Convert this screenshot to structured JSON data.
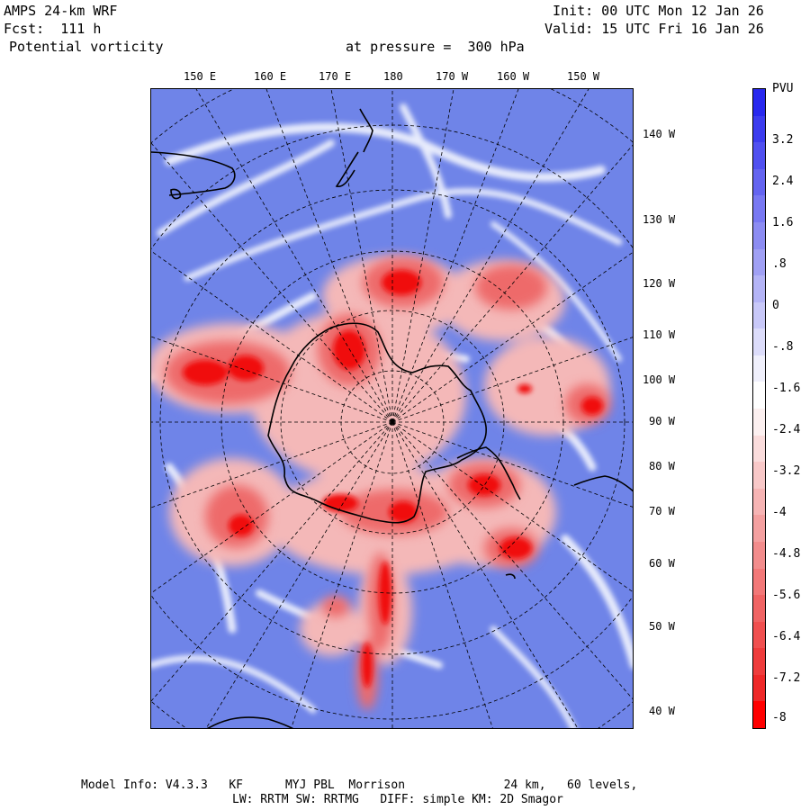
{
  "header": {
    "model": "AMPS 24-km WRF",
    "forecast": "Fcst:  111 h",
    "variable": "Potential vorticity",
    "level": "at pressure =  300 hPa",
    "init": "Init: 00 UTC Mon 12 Jan 26",
    "valid": "Valid: 15 UTC Fri 16 Jan 26"
  },
  "map": {
    "top_lon_labels": [
      "150 E",
      "160 E",
      "170 E",
      "180",
      "170 W",
      "160 W",
      "150 W"
    ],
    "right_lon_labels": [
      "140 W",
      "130 W",
      "120 W",
      "110 W",
      "100 W",
      "90 W",
      "80 W",
      "70 W",
      "60 W",
      "50 W",
      "40 W"
    ]
  },
  "colorbar": {
    "title": "PVU",
    "labels": [
      "3.2",
      "2.4",
      "1.6",
      ".8",
      "0",
      "-.8",
      "-1.6",
      "-2.4",
      "-3.2",
      "-4",
      "-4.8",
      "-5.6",
      "-6.4",
      "-7.2",
      "-8"
    ],
    "colors": [
      "#2828ee",
      "#3c3cee",
      "#5050f0",
      "#6464f0",
      "#7878f2",
      "#8c8cf2",
      "#a0a0f4",
      "#b4b4f6",
      "#c8c8f8",
      "#dcdcfa",
      "#f0f0fc",
      "#ffffff",
      "#fcf0f0",
      "#fadcdc",
      "#f8c8c8",
      "#f6b4b4",
      "#f4a0a0",
      "#f28c8c",
      "#f27878",
      "#f06464",
      "#f05050",
      "#ee3c3c",
      "#ee2828",
      "#ff0000"
    ]
  },
  "footer": {
    "line1": "Model Info: V4.3.3   KF      MYJ PBL  Morrison              24 km,   60 levels,",
    "line2": "LW: RRTM SW: RRTMG   DIFF: simple KM: 2D Smagor"
  }
}
